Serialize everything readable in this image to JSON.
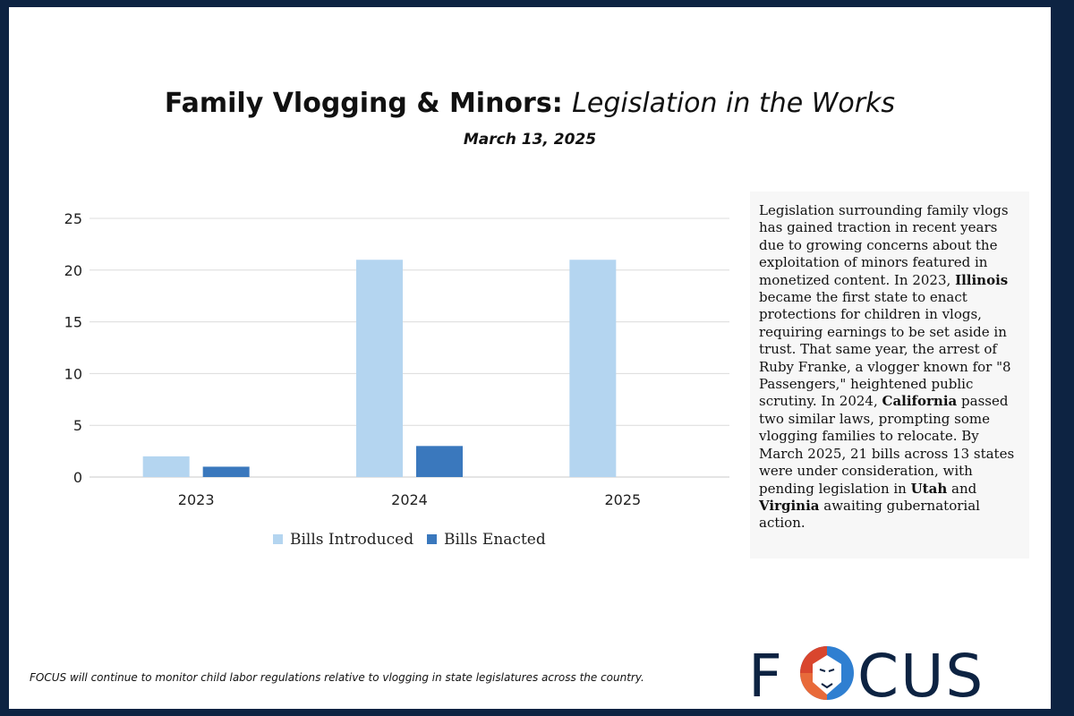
{
  "header": {
    "title_bold": "Family Vlogging & Minors:",
    "title_italic": "Legislation in the Works",
    "date": "March 13, 2025"
  },
  "chart_data": {
    "type": "bar",
    "categories": [
      "2023",
      "2024",
      "2025"
    ],
    "series": [
      {
        "name": "Bills Introduced",
        "values": [
          2,
          21,
          21
        ],
        "color": "#b4d5f0"
      },
      {
        "name": "Bills Enacted",
        "values": [
          1,
          3,
          0
        ],
        "color": "#3a78bd"
      }
    ],
    "ylim": [
      0,
      25
    ],
    "yticks": [
      0,
      5,
      10,
      15,
      20,
      25
    ],
    "grid": true,
    "legend": "bottom"
  },
  "sidebar": {
    "t1": "Legislation surrounding family vlogs has gained traction in recent years due to growing concerns about the exploitation of minors featured in monetized content. In 2023, ",
    "b1": "Illinois",
    "t2": " became the first state to enact protections for children in vlogs, requiring earnings to be set aside in trust. That same year, the arrest of Ruby Franke, a vlogger known for \"8 Passengers,\" heightened public scrutiny. In 2024, ",
    "b2": "California",
    "t3": " passed two similar laws, prompting some vlogging families to relocate. By March 2025, 21 bills across 13 states were under consideration, with pending legislation in ",
    "b3": "Utah",
    "t4": " and ",
    "b4": "Virginia",
    "t5": " awaiting gubernatorial action."
  },
  "footer": {
    "note": "FOCUS will continue to monitor child labor regulations relative to vlogging in state legislatures across the country.",
    "logo_text": "FOCUS"
  },
  "colors": {
    "frame": "#0d2342",
    "logo_navy": "#0d2342",
    "logo_red": "#d9462e",
    "logo_blue": "#2f7fd1"
  }
}
